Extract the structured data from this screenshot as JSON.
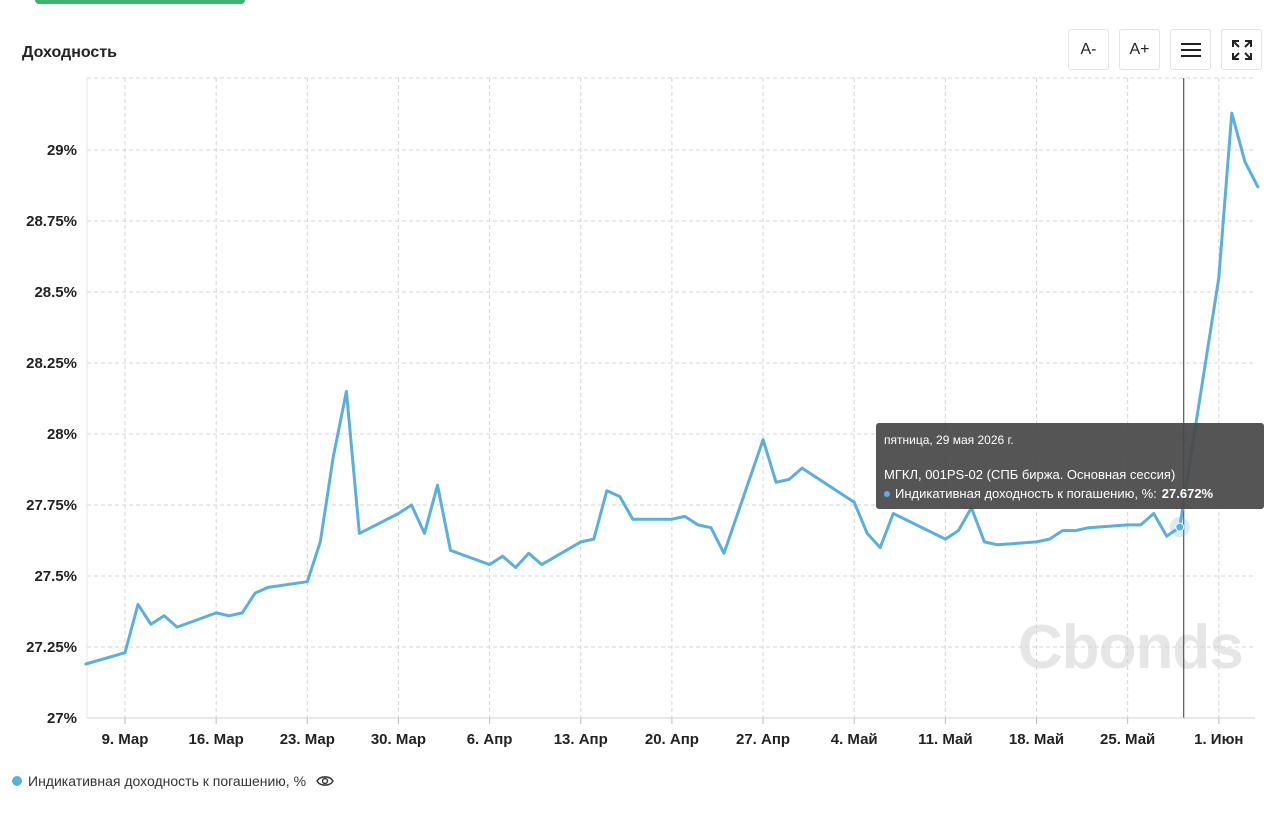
{
  "header": {
    "title": "Доходность",
    "buttons": {
      "font_decrease": "A-",
      "font_increase": "A+",
      "menu_icon": "menu-icon",
      "fullscreen_icon": "fullscreen-icon"
    }
  },
  "colors": {
    "series": "#5aafdc",
    "accent": "#3cb371",
    "grid": "#d4d4d4",
    "tooltip_bg": "#484848"
  },
  "chart_data": {
    "type": "line",
    "title": "",
    "xlabel": "",
    "ylabel": "",
    "ylim": [
      27,
      29.25
    ],
    "y_ticks": [
      "27%",
      "27.25%",
      "27.5%",
      "27.75%",
      "28%",
      "28.25%",
      "28.5%",
      "28.75%",
      "29%"
    ],
    "x_ticks": [
      {
        "date": "2026-03-09",
        "label": "9. Мар"
      },
      {
        "date": "2026-03-16",
        "label": "16. Мар"
      },
      {
        "date": "2026-03-23",
        "label": "23. Мар"
      },
      {
        "date": "2026-03-30",
        "label": "30. Мар"
      },
      {
        "date": "2026-04-06",
        "label": "6. Апр"
      },
      {
        "date": "2026-04-13",
        "label": "13. Апр"
      },
      {
        "date": "2026-04-20",
        "label": "20. Апр"
      },
      {
        "date": "2026-04-27",
        "label": "27. Апр"
      },
      {
        "date": "2026-05-04",
        "label": "4. Май"
      },
      {
        "date": "2026-05-11",
        "label": "11. Май"
      },
      {
        "date": "2026-05-18",
        "label": "18. Май"
      },
      {
        "date": "2026-05-25",
        "label": "25. Май"
      },
      {
        "date": "2026-06-01",
        "label": "1. Июн"
      }
    ],
    "grid": true,
    "legend": "bottom-left",
    "series": [
      {
        "name": "Индикативная доходность к погашению, %",
        "points": [
          [
            "2026-03-06",
            27.19
          ],
          [
            "2026-03-09",
            27.23
          ],
          [
            "2026-03-10",
            27.4
          ],
          [
            "2026-03-11",
            27.33
          ],
          [
            "2026-03-12",
            27.36
          ],
          [
            "2026-03-13",
            27.32
          ],
          [
            "2026-03-16",
            27.37
          ],
          [
            "2026-03-17",
            27.36
          ],
          [
            "2026-03-18",
            27.37
          ],
          [
            "2026-03-19",
            27.44
          ],
          [
            "2026-03-20",
            27.46
          ],
          [
            "2026-03-23",
            27.48
          ],
          [
            "2026-03-24",
            27.62
          ],
          [
            "2026-03-25",
            27.92
          ],
          [
            "2026-03-26",
            28.15
          ],
          [
            "2026-03-27",
            27.65
          ],
          [
            "2026-03-30",
            27.72
          ],
          [
            "2026-03-31",
            27.75
          ],
          [
            "2026-04-01",
            27.65
          ],
          [
            "2026-04-02",
            27.82
          ],
          [
            "2026-04-03",
            27.59
          ],
          [
            "2026-04-06",
            27.54
          ],
          [
            "2026-04-07",
            27.57
          ],
          [
            "2026-04-08",
            27.53
          ],
          [
            "2026-04-09",
            27.58
          ],
          [
            "2026-04-10",
            27.54
          ],
          [
            "2026-04-13",
            27.62
          ],
          [
            "2026-04-14",
            27.63
          ],
          [
            "2026-04-15",
            27.8
          ],
          [
            "2026-04-16",
            27.78
          ],
          [
            "2026-04-17",
            27.7
          ],
          [
            "2026-04-20",
            27.7
          ],
          [
            "2026-04-21",
            27.71
          ],
          [
            "2026-04-22",
            27.68
          ],
          [
            "2026-04-23",
            27.67
          ],
          [
            "2026-04-24",
            27.58
          ],
          [
            "2026-04-27",
            27.98
          ],
          [
            "2026-04-28",
            27.83
          ],
          [
            "2026-04-29",
            27.84
          ],
          [
            "2026-04-30",
            27.88
          ],
          [
            "2026-05-04",
            27.76
          ],
          [
            "2026-05-05",
            27.65
          ],
          [
            "2026-05-06",
            27.6
          ],
          [
            "2026-05-07",
            27.72
          ],
          [
            "2026-05-11",
            27.63
          ],
          [
            "2026-05-12",
            27.66
          ],
          [
            "2026-05-13",
            27.74
          ],
          [
            "2026-05-14",
            27.62
          ],
          [
            "2026-05-15",
            27.61
          ],
          [
            "2026-05-18",
            27.62
          ],
          [
            "2026-05-19",
            27.63
          ],
          [
            "2026-05-20",
            27.66
          ],
          [
            "2026-05-21",
            27.66
          ],
          [
            "2026-05-22",
            27.67
          ],
          [
            "2026-05-25",
            27.68
          ],
          [
            "2026-05-26",
            27.68
          ],
          [
            "2026-05-27",
            27.72
          ],
          [
            "2026-05-28",
            27.64
          ],
          [
            "2026-05-29",
            27.672
          ],
          [
            "2026-06-01",
            28.55
          ],
          [
            "2026-06-02",
            29.13
          ],
          [
            "2026-06-03",
            28.96
          ],
          [
            "2026-06-04",
            28.87
          ]
        ]
      }
    ],
    "tooltip": {
      "date": "пятница, 29 мая 2026 г.",
      "instrument": "МГКЛ, 001PS-02 (СПБ биржа. Основная сессия)",
      "label": "Индикативная доходность к погашению, %:",
      "value": "27.672%",
      "point_date": "2026-05-29"
    }
  },
  "watermark": "Cbonds",
  "legend": {
    "label": "Индикативная доходность к погашению, %",
    "visibility_icon": "eye-icon"
  }
}
